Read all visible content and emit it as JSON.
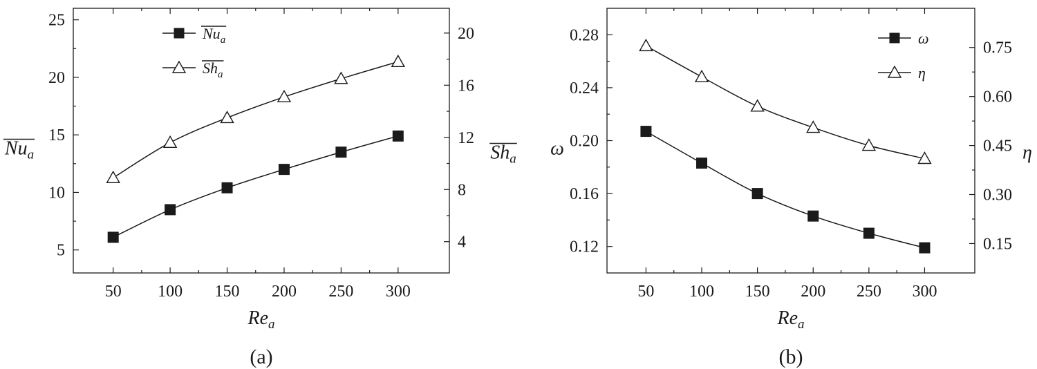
{
  "chart_data": [
    {
      "type": "line",
      "panel_label": "(a)",
      "x": [
        50,
        100,
        150,
        200,
        250,
        300
      ],
      "xlabel": {
        "base": "Re",
        "sub": "a"
      },
      "xticks": [
        "50",
        "100",
        "150",
        "200",
        "250",
        "300"
      ],
      "xlim": [
        15,
        345
      ],
      "y_left": {
        "label": {
          "base": "Nu",
          "sub": "a",
          "overline": true
        },
        "lim": [
          3,
          26
        ],
        "ticks": [
          "5",
          "10",
          "15",
          "20",
          "25"
        ]
      },
      "y_right": {
        "label": {
          "base": "Sh",
          "sub": "a",
          "overline": true
        },
        "lim": [
          1.6,
          21.9
        ],
        "ticks": [
          "4",
          "8",
          "12",
          "16",
          "20"
        ]
      },
      "legend_position": "top-left",
      "series": [
        {
          "name": {
            "base": "Nu",
            "sub": "a",
            "overline": true
          },
          "axis": "left",
          "marker": "filled-square",
          "values": [
            6.1,
            8.5,
            10.4,
            12.0,
            13.5,
            14.9
          ]
        },
        {
          "name": {
            "base": "Sh",
            "sub": "a",
            "overline": true
          },
          "axis": "right",
          "marker": "open-triangle",
          "values": [
            8.9,
            11.6,
            13.5,
            15.1,
            16.5,
            17.8
          ]
        }
      ]
    },
    {
      "type": "line",
      "panel_label": "(b)",
      "x": [
        50,
        100,
        150,
        200,
        250,
        300
      ],
      "xlabel": {
        "base": "Re",
        "sub": "a"
      },
      "xticks": [
        "50",
        "100",
        "150",
        "200",
        "250",
        "300"
      ],
      "xlim": [
        15,
        345
      ],
      "y_left": {
        "label": {
          "base": "ω",
          "sub": "",
          "overline": false
        },
        "lim": [
          0.1,
          0.3
        ],
        "ticks": [
          "0.12",
          "0.16",
          "0.20",
          "0.24",
          "0.28"
        ]
      },
      "y_right": {
        "label": {
          "base": "η",
          "sub": "",
          "overline": false
        },
        "lim": [
          0.06,
          0.87
        ],
        "ticks": [
          "0.15",
          "0.30",
          "0.45",
          "0.60",
          "0.75"
        ]
      },
      "legend_position": "top-right",
      "series": [
        {
          "name": {
            "base": "ω",
            "sub": "",
            "overline": false
          },
          "axis": "left",
          "marker": "filled-square",
          "values": [
            0.207,
            0.183,
            0.16,
            0.143,
            0.13,
            0.119
          ]
        },
        {
          "name": {
            "base": "η",
            "sub": "",
            "overline": false
          },
          "axis": "right",
          "marker": "open-triangle",
          "values": [
            0.755,
            0.66,
            0.57,
            0.505,
            0.45,
            0.41
          ]
        }
      ]
    }
  ]
}
